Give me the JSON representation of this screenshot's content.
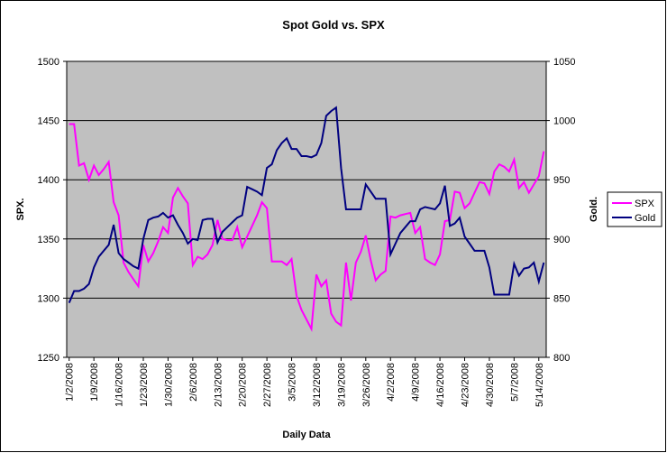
{
  "chart_data": {
    "type": "line",
    "title": "Spot Gold vs. SPX",
    "x_label": "Daily Data",
    "y_label": "SPX.",
    "y2_label": "Gold.",
    "categories": [
      "1/2/2008",
      null,
      null,
      null,
      null,
      "1/9/2008",
      null,
      null,
      null,
      null,
      "1/16/2008",
      null,
      null,
      null,
      null,
      "1/23/2008",
      null,
      null,
      null,
      null,
      "1/30/2008",
      null,
      null,
      null,
      null,
      "2/6/2008",
      null,
      null,
      null,
      null,
      "2/13/2008",
      null,
      null,
      null,
      null,
      "2/20/2008",
      null,
      null,
      null,
      null,
      "2/27/2008",
      null,
      null,
      null,
      null,
      "3/5/2008",
      null,
      null,
      null,
      null,
      "3/12/2008",
      null,
      null,
      null,
      null,
      "3/19/2008",
      null,
      null,
      null,
      null,
      "3/26/2008",
      null,
      null,
      null,
      null,
      "4/2/2008",
      null,
      null,
      null,
      null,
      "4/9/2008",
      null,
      null,
      null,
      null,
      "4/16/2008",
      null,
      null,
      null,
      null,
      "4/23/2008",
      null,
      null,
      null,
      null,
      "4/30/2008",
      null,
      null,
      null,
      null,
      "5/7/2008",
      null,
      null,
      null,
      null,
      "5/14/2008",
      null
    ],
    "series": [
      {
        "name": "SPX",
        "color": "#ff00ff",
        "values": [
          1447,
          1447,
          1412,
          1414,
          1400,
          1412,
          1404,
          1409,
          1415,
          1381,
          1370,
          1330,
          1322,
          1316,
          1310,
          1345,
          1331,
          1338,
          1348,
          1360,
          1355,
          1385,
          1393,
          1386,
          1380,
          1328,
          1335,
          1333,
          1337,
          1345,
          1366,
          1350,
          1349,
          1349,
          1360,
          1343,
          1352,
          1361,
          1370,
          1381,
          1376,
          1331,
          1331,
          1331,
          1328,
          1333,
          1302,
          1290,
          1282,
          1274,
          1320,
          1310,
          1315,
          1287,
          1280,
          1277,
          1330,
          1298,
          1330,
          1339,
          1353,
          1332,
          1315,
          1320,
          1323,
          1369,
          1368,
          1370,
          1371,
          1372,
          1355,
          1360,
          1333,
          1330,
          1328,
          1337,
          1365,
          1366,
          1390,
          1389,
          1376,
          1380,
          1389,
          1398,
          1397,
          1388,
          1407,
          1413,
          1411,
          1407,
          1417,
          1393,
          1398,
          1389,
          1396,
          1403,
          1424
        ]
      },
      {
        "name": "Gold",
        "color": "#000080",
        "axis": "y2",
        "values": [
          846,
          856,
          856,
          858,
          862,
          876,
          885,
          890,
          895,
          912,
          888,
          883,
          880,
          877,
          875,
          900,
          916,
          918,
          919,
          922,
          918,
          920,
          912,
          905,
          896,
          900,
          899,
          916,
          917,
          917,
          897,
          906,
          910,
          914,
          918,
          920,
          944,
          942,
          940,
          937,
          960,
          963,
          975,
          981,
          985,
          976,
          976,
          970,
          970,
          969,
          971,
          981,
          1004,
          1008,
          1011,
          960,
          925,
          925,
          925,
          925,
          946,
          940,
          934,
          934,
          934,
          887,
          896,
          905,
          910,
          915,
          915,
          925,
          927,
          926,
          925,
          930,
          945,
          911,
          913,
          918,
          902,
          896,
          890,
          890,
          890,
          876,
          853,
          853,
          853,
          853,
          879,
          869,
          875,
          876,
          880,
          864,
          880
        ]
      }
    ],
    "ylim": [
      1250,
      1500
    ],
    "yticks": [
      1250,
      1300,
      1350,
      1400,
      1450,
      1500
    ],
    "y2lim": [
      800,
      1050
    ],
    "y2ticks": [
      800,
      850,
      900,
      950,
      1000,
      1050
    ],
    "grid": true,
    "legend": "right"
  }
}
